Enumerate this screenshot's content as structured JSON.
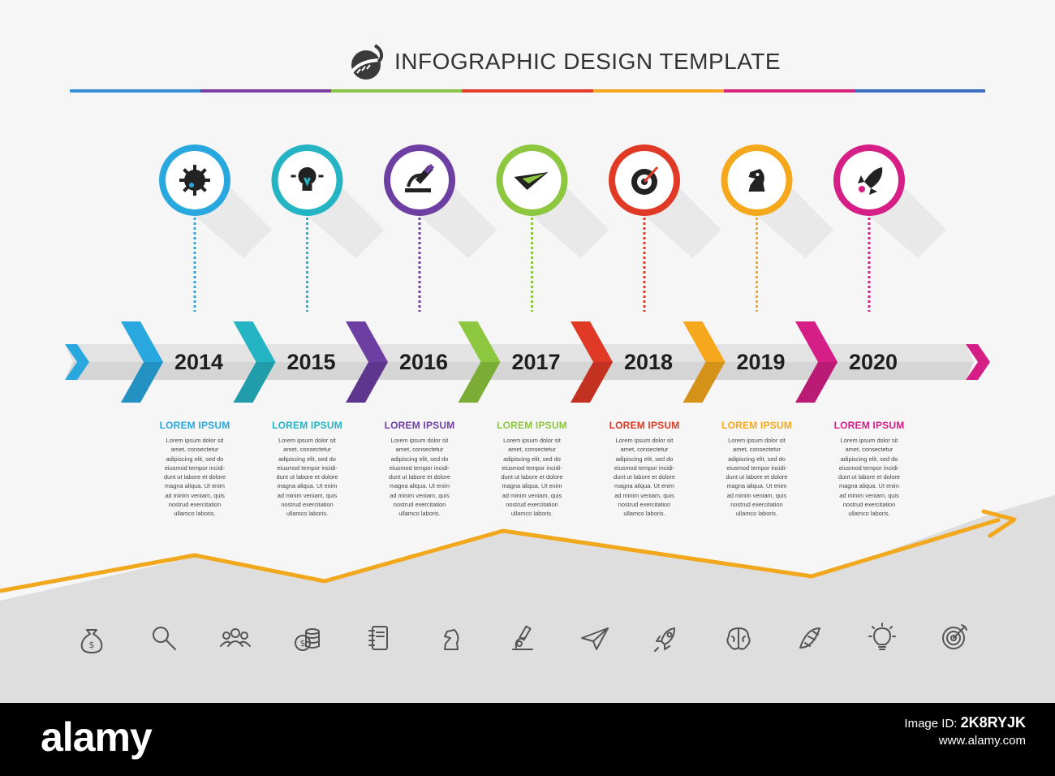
{
  "header": {
    "title": "INFOGRAPHIC DESIGN TEMPLATE",
    "logo_icon": "arc-swoosh-logo-icon"
  },
  "colors": {
    "rule": [
      "#3b8fd6",
      "#7a3fa0",
      "#8bc34a",
      "#e2402b",
      "#f5a623",
      "#d6247a",
      "#3a6fc2"
    ],
    "track": "#d5d5d5",
    "area": "#dedede",
    "trend": "#f2a81d",
    "icon_stroke": "#555555"
  },
  "timeline": {
    "milestones": [
      {
        "year": "2014",
        "color": "#29a8e0",
        "icon": "virus-icon",
        "card_title": "LOREM IPSUM",
        "card_body": "Lorem ipsum dolor sit\namet, consectetur\nadipiscing elit, sed do\neiusmod tempor incidi-\ndunt ut labore et dolore\nmagna aliqua. Ut enim\nad minim veniam, quis\nnostrud exercitation\nullamco laboris."
      },
      {
        "year": "2015",
        "color": "#25b4c4",
        "icon": "lightbulb-icon",
        "card_title": "LOREM IPSUM",
        "card_body": "Lorem ipsum dolor sit\namet, consectetur\nadipiscing elit, sed do\neiusmod tempor incidi-\ndunt ut labore et dolore\nmagna aliqua. Ut enim\nad minim veniam, quis\nnostrud exercitation\nullamco laboris."
      },
      {
        "year": "2016",
        "color": "#6d3fa3",
        "icon": "microscope-icon",
        "card_title": "LOREM IPSUM",
        "card_body": "Lorem ipsum dolor sit\namet, consectetur\nadipiscing elit, sed do\neiusmod tempor incidi-\ndunt ut labore et dolore\nmagna aliqua. Ut enim\nad minim veniam, quis\nnostrud exercitation\nullamco laboris."
      },
      {
        "year": "2017",
        "color": "#8dc63f",
        "icon": "paper-plane-icon",
        "card_title": "LOREM IPSUM",
        "card_body": "Lorem ipsum dolor sit\namet, consectetur\nadipiscing elit, sed do\neiusmod tempor incidi-\ndunt ut labore et dolore\nmagna aliqua. Ut enim\nad minim veniam, quis\nnostrud exercitation\nullamco laboris."
      },
      {
        "year": "2018",
        "color": "#e03a26",
        "icon": "target-icon",
        "card_title": "LOREM IPSUM",
        "card_body": "Lorem ipsum dolor sit\namet, consectetur\nadipiscing elit, sed do\neiusmod tempor incidi-\ndunt ut labore et dolore\nmagna aliqua. Ut enim\nad minim veniam, quis\nnostrud exercitation\nullamco laboris."
      },
      {
        "year": "2019",
        "color": "#f5a81c",
        "icon": "chess-knight-icon",
        "card_title": "LOREM IPSUM",
        "card_body": "Lorem ipsum dolor sit\namet, consectetur\nadipiscing elit, sed do\neiusmod tempor incidi-\ndunt ut labore et dolore\nmagna aliqua. Ut enim\nad minim veniam, quis\nnostrud exercitation\nullamco laboris."
      },
      {
        "year": "2020",
        "color": "#d61f86",
        "icon": "rocket-icon",
        "card_title": "LOREM IPSUM",
        "card_body": "Lorem ipsum dolor sit\namet, consectetur\nadipiscing elit, sed do\neiusmod tempor incidi-\ndunt ut labore et dolore\nmagna aliqua. Ut enim\nad minim veniam, quis\nnostrud exercitation\nullamco laboris."
      }
    ]
  },
  "bottom_icons": [
    "money-bag-icon",
    "magnifier-icon",
    "team-icon",
    "coins-icon",
    "notebook-icon",
    "chess-knight-icon",
    "microscope-icon",
    "paper-plane-icon",
    "rocket-icon",
    "brain-icon",
    "dna-icon",
    "lightbulb-icon",
    "target-icon"
  ],
  "footer": {
    "brand": "alamy",
    "image_id_label": "Image ID:",
    "image_id": "2K8RYJK",
    "url": "www.alamy.com"
  }
}
